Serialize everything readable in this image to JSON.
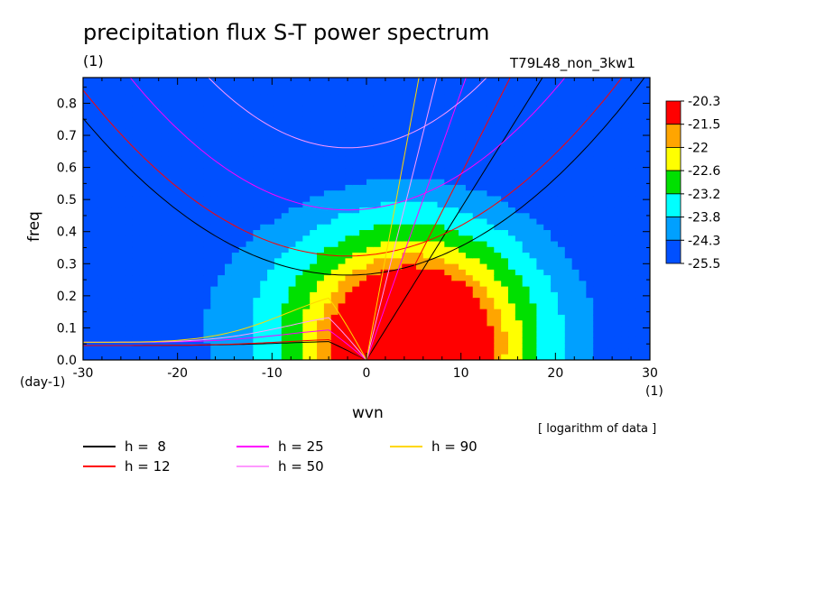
{
  "title": "precipitation flux S-T power spectrum",
  "unit_top": "(1)",
  "run_label": "T79L48_non_3kw1",
  "x_unit": "(1)",
  "y_unit": "(day-1)",
  "note": "[ logarithm of data ]",
  "chart_data": {
    "type": "heatmap",
    "title": "precipitation flux S-T power spectrum",
    "xlabel": "wvn",
    "ylabel": "freq",
    "xlim": [
      -30,
      30
    ],
    "ylim": [
      0,
      0.88
    ],
    "xticks": [
      -30,
      -20,
      -10,
      0,
      10,
      20,
      30
    ],
    "yticks": [
      0.0,
      0.1,
      0.2,
      0.3,
      0.4,
      0.5,
      0.6,
      0.7,
      0.8
    ],
    "colorbar": {
      "levels": [
        "-20.3",
        "-21.5",
        "-22",
        "-22.6",
        "-23.2",
        "-23.8",
        "-24.3",
        "-25.5"
      ],
      "colors": [
        "#ff0000",
        "#ffa500",
        "#ffff00",
        "#00e000",
        "#00ffff",
        "#00a0ff",
        "#0050ff"
      ]
    },
    "fill_values": [
      -25.0,
      -24.0,
      -23.5,
      -22.9,
      -22.3,
      -21.8,
      -20.9
    ],
    "peak": {
      "wvn": 5,
      "freq": 0.04
    },
    "dispersion_curves": [
      {
        "name": "h =  8",
        "h": 8,
        "color": "#000000"
      },
      {
        "name": "h = 12",
        "h": 12,
        "color": "#ff0000"
      },
      {
        "name": "h = 25",
        "h": 25,
        "color": "#ff00ff"
      },
      {
        "name": "h = 50",
        "h": 50,
        "color": "#ff99ff"
      },
      {
        "name": "h = 90",
        "h": 90,
        "color": "#ffd700"
      }
    ]
  }
}
